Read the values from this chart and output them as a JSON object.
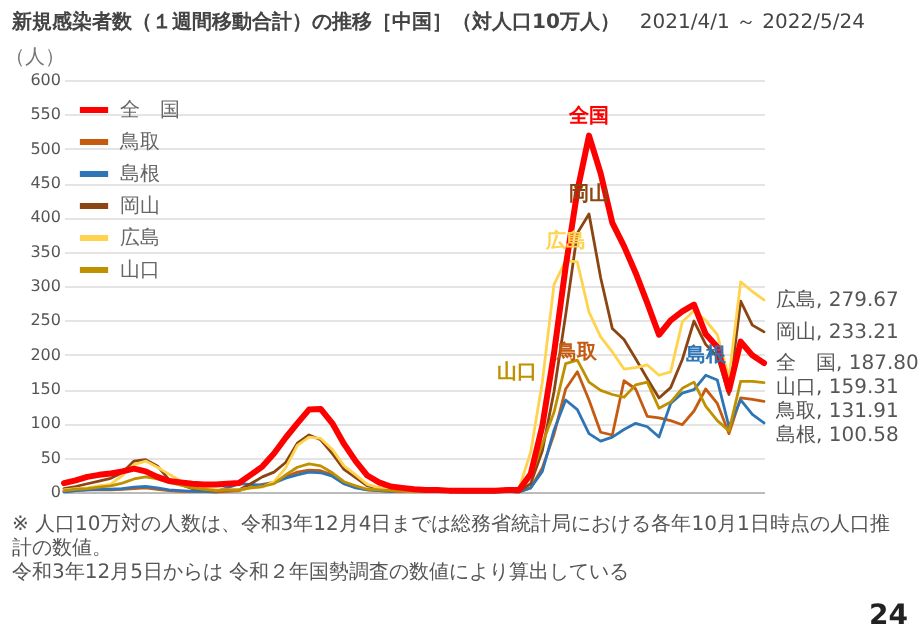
{
  "chart_data": {
    "type": "line",
    "title": "新規感染者数（１週間移動合計）の推移［中国］（対人口10万人）",
    "subtitle": "2021/4/1 ～ 2022/5/24",
    "ylabel": "（人）",
    "categories": [
      null,
      null,
      null,
      null,
      null,
      null,
      null,
      null,
      null,
      null,
      null,
      null,
      null,
      null,
      null,
      null,
      null,
      null,
      null,
      null,
      null,
      null,
      null,
      null,
      null,
      null,
      null,
      null,
      null,
      null,
      null,
      null,
      null,
      null,
      null,
      null,
      null,
      null,
      null,
      null,
      null,
      null,
      null,
      null,
      null,
      null,
      null,
      null,
      null,
      null,
      null,
      null,
      null,
      null,
      null,
      null,
      null,
      null,
      null,
      null,
      null
    ],
    "ylim": [
      0,
      600
    ],
    "yticks": [
      0,
      50,
      100,
      150,
      200,
      250,
      300,
      350,
      400,
      450,
      500,
      550,
      600
    ],
    "grid": "y",
    "legend": "top left",
    "series": [
      {
        "name": "全　国",
        "color": "#ff0000",
        "values": [
          13,
          17,
          22,
          25,
          27,
          30,
          34,
          30,
          22,
          16,
          14,
          12,
          11,
          11,
          12,
          13,
          25,
          37,
          56,
          79,
          100,
          120,
          121,
          100,
          70,
          45,
          24,
          14,
          8,
          6,
          4,
          3,
          3,
          2,
          2,
          2,
          2,
          2,
          3,
          3,
          26,
          96,
          202,
          328,
          438,
          519,
          464,
          392,
          358,
          319,
          275,
          229,
          250,
          263,
          273,
          230,
          211,
          148,
          219,
          199,
          187.8
        ]
      },
      {
        "name": "鳥取",
        "color": "#c55a11",
        "values": [
          1,
          2,
          3,
          3,
          3,
          4,
          5,
          6,
          4,
          2,
          1,
          1,
          1,
          0,
          1,
          2,
          7,
          11,
          14,
          22,
          29,
          32,
          31,
          25,
          12,
          7,
          3,
          2,
          1,
          1,
          1,
          1,
          1,
          1,
          1,
          1,
          1,
          0,
          1,
          0,
          6,
          35,
          84,
          150,
          175,
          134,
          87,
          83,
          162,
          150,
          110,
          108,
          104,
          98,
          118,
          150,
          129,
          85,
          137,
          135,
          131.91
        ]
      },
      {
        "name": "島根",
        "color": "#2e75b6",
        "values": [
          0,
          2,
          3,
          4,
          4,
          5,
          7,
          8,
          6,
          3,
          2,
          1,
          1,
          1,
          6,
          12,
          11,
          10,
          13,
          20,
          25,
          29,
          28,
          23,
          12,
          6,
          3,
          2,
          1,
          3,
          4,
          3,
          1,
          1,
          0,
          0,
          0,
          0,
          1,
          0,
          6,
          30,
          90,
          134,
          120,
          85,
          74,
          80,
          91,
          100,
          95,
          80,
          129,
          144,
          149,
          170,
          163,
          95,
          134,
          113,
          100.58
        ]
      },
      {
        "name": "岡山",
        "color": "#8b4513",
        "values": [
          5,
          8,
          12,
          16,
          20,
          28,
          45,
          47,
          38,
          18,
          11,
          5,
          4,
          2,
          2,
          3,
          12,
          22,
          29,
          43,
          71,
          83,
          76,
          56,
          33,
          21,
          9,
          6,
          3,
          3,
          2,
          2,
          1,
          1,
          1,
          1,
          1,
          1,
          2,
          1,
          12,
          60,
          146,
          258,
          377,
          405,
          312,
          238,
          222,
          194,
          165,
          137,
          152,
          193,
          249,
          215,
          197,
          142,
          278,
          243,
          233.21
        ]
      },
      {
        "name": "広島",
        "color": "#ffd34d",
        "values": [
          3,
          5,
          6,
          9,
          11,
          24,
          40,
          45,
          36,
          26,
          16,
          8,
          6,
          3,
          3,
          3,
          6,
          7,
          15,
          35,
          68,
          80,
          78,
          62,
          38,
          25,
          11,
          6,
          3,
          2,
          1,
          1,
          1,
          1,
          1,
          1,
          1,
          1,
          2,
          5,
          58,
          160,
          302,
          337,
          335,
          262,
          226,
          204,
          179,
          181,
          185,
          170,
          175,
          248,
          264,
          250,
          229,
          166,
          306,
          292,
          279.67
        ]
      },
      {
        "name": "山口",
        "color": "#bf9000",
        "values": [
          2,
          4,
          5,
          7,
          9,
          13,
          19,
          22,
          19,
          14,
          10,
          6,
          4,
          2,
          3,
          3,
          6,
          8,
          12,
          25,
          36,
          41,
          38,
          28,
          15,
          9,
          4,
          3,
          2,
          2,
          1,
          1,
          1,
          1,
          1,
          1,
          1,
          2,
          2,
          4,
          22,
          70,
          116,
          187,
          192,
          160,
          148,
          142,
          138,
          156,
          160,
          122,
          131,
          151,
          160,
          125,
          104,
          89,
          161,
          161,
          159.31
        ]
      }
    ],
    "annotations": [
      "全国",
      "鳥取",
      "島根",
      "岡山",
      "広島",
      "山口",
      "全　国, 187.80",
      "鳥取, 131.91",
      "島根, 100.58",
      "岡山, 233.21",
      "広島, 279.67",
      "山口, 159.31",
      "※ 人口10万対の人数は、令和3年12月4日までは総務省統計局における各年10月1日時点の人口推計の数値。",
      "令和3年12月5日からは 令和２年国勢調査の数値により算出している",
      "24"
    ]
  }
}
